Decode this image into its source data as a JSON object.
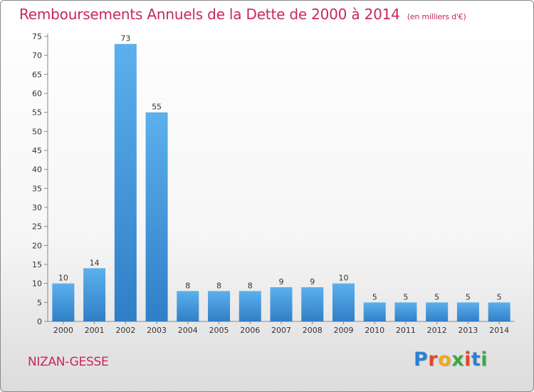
{
  "title": "Remboursements Annuels de la Dette de 2000 à 2014",
  "unit_note": "(en milliers d'€)",
  "commune": "NIZAN-GESSE",
  "logo": {
    "text": "Proxiti",
    "letter_colors": [
      "#2a7fd4",
      "#e2462c",
      "#f0a81c",
      "#3aa845",
      "#e2462c",
      "#2a7fd4",
      "#3aa845"
    ]
  },
  "colors": {
    "title": "#c8285a",
    "bar_top": "#5cb0ec",
    "bar_bottom": "#2f7fc7"
  },
  "chart_data": {
    "type": "bar",
    "title": "Remboursements Annuels de la Dette de 2000 à 2014",
    "categories": [
      "2000",
      "2001",
      "2002",
      "2003",
      "2004",
      "2005",
      "2006",
      "2007",
      "2008",
      "2009",
      "2010",
      "2011",
      "2012",
      "2013",
      "2014"
    ],
    "values": [
      10,
      14,
      73,
      55,
      8,
      8,
      8,
      9,
      9,
      10,
      5,
      5,
      5,
      5,
      5
    ],
    "ylim": [
      0,
      75
    ],
    "yticks": [
      0,
      5,
      10,
      15,
      20,
      25,
      30,
      35,
      40,
      45,
      50,
      55,
      60,
      65,
      70,
      75
    ],
    "grid": false,
    "legend": "none"
  }
}
